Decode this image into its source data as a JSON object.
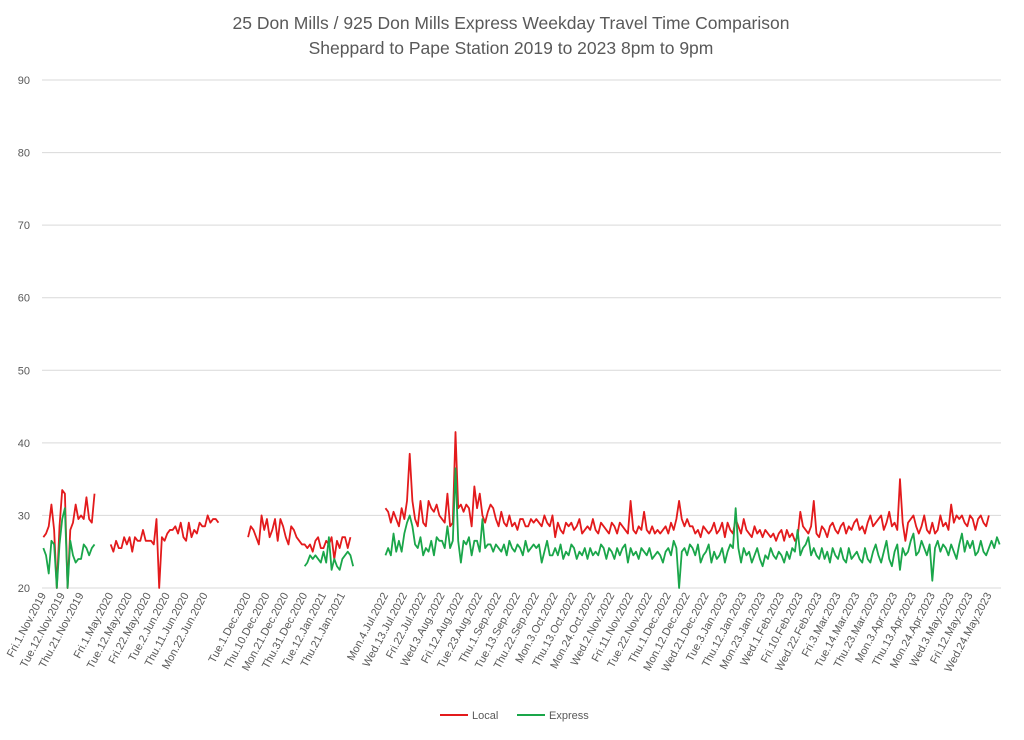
{
  "chart_data": {
    "type": "line",
    "title": "25 Don Mills / 925 Don Mills Express Weekday Travel Time Comparison",
    "subtitle": "Sheppard to Pape Station 2019 to 2023 8pm to 9pm",
    "xlabel": "",
    "ylabel": "",
    "ylim": [
      20,
      90
    ],
    "yticks": [
      20,
      30,
      40,
      50,
      60,
      70,
      80,
      90
    ],
    "grid": true,
    "legend_position": "bottom-center",
    "colors": {
      "Local": "#e31a1c",
      "Express": "#1aa64a"
    },
    "categories": [
      "Fri.1.Nov.2019",
      "Tue.12.Nov.2019",
      "Thu.21.Nov.2019",
      "Fri.1.May.2020",
      "Tue.12.May.2020",
      "Fri.22.May.2020",
      "Tue.2.Jun.2020",
      "Thu.11.Jun.2020",
      "Mon.22.Jun.2020",
      "Tue.1.Dec.2020",
      "Thu.10.Dec.2020",
      "Mon.21.Dec.2020",
      "Thu.31.Dec.2020",
      "Tue.12.Jan.2021",
      "Thu.21.Jan.2021",
      "Mon.4.Jul.2022",
      "Wed.13.Jul.2022",
      "Fri.22.Jul.2022",
      "Wed.3.Aug.2022",
      "Fri.12.Aug.2022",
      "Tue.23.Aug.2022",
      "Thu.1.Sep.2022",
      "Tue.13.Sep.2022",
      "Thu.22.Sep.2022",
      "Mon.3.Oct.2022",
      "Thu.13.Oct.2022",
      "Mon.24.Oct.2022",
      "Wed.2.Nov.2022",
      "Fri.11.Nov.2022",
      "Tue.22.Nov.2022",
      "Thu.1.Dec.2022",
      "Mon.12.Dec.2022",
      "Wed.21.Dec.2022",
      "Tue.3.Jan.2023",
      "Thu.12.Jan.2023",
      "Mon.23.Jan.2023",
      "Wed.1.Feb.2023",
      "Fri.10.Feb.2023",
      "Wed.22.Feb.2023",
      "Fri.3.Mar.2023",
      "Tue.14.Mar.2023",
      "Thu.23.Mar.2023",
      "Mon.3.Apr.2023",
      "Thu.13.Apr.2023",
      "Mon.24.Apr.2023",
      "Wed.3.May.2023",
      "Fri.12.May.2023",
      "Wed.24.May.2023"
    ],
    "category_index": [
      0,
      7,
      14,
      25,
      32,
      39,
      46,
      53,
      60,
      76,
      83,
      90,
      97,
      104,
      111,
      127,
      134,
      141,
      148,
      155,
      162,
      169,
      176,
      183,
      190,
      197,
      204,
      211,
      218,
      225,
      232,
      239,
      246,
      253,
      260,
      267,
      274,
      281,
      288,
      295,
      302,
      309,
      316,
      323,
      330,
      337,
      344,
      351
    ],
    "total_points": 356,
    "series": [
      {
        "name": "Local",
        "segments": [
          {
            "start": 0,
            "values": [
              27.0,
              27.5,
              28.5,
              31.5,
              28.0,
              20.0,
              28.5,
              33.5,
              33.0,
              20.0,
              28.0,
              29.0,
              31.5,
              29.5,
              30.0,
              29.5,
              32.5,
              29.5,
              29.0,
              33.0
            ]
          },
          {
            "start": 25,
            "values": [
              26.0,
              25.0,
              26.5,
              25.5,
              25.5,
              27.0,
              26.0,
              27.0,
              25.0,
              27.0,
              26.5,
              26.5,
              28.0,
              26.5,
              26.5,
              26.5,
              26.0,
              29.5,
              20.0,
              27.0,
              26.5,
              27.5,
              28.0,
              28.0,
              28.5,
              27.5,
              29.0,
              27.0,
              26.5,
              29.0,
              27.0,
              28.0,
              27.5,
              29.0,
              28.5,
              28.5,
              30.0,
              29.0,
              29.5,
              29.5,
              29.0
            ]
          },
          {
            "start": 76,
            "values": [
              27.0,
              28.5,
              28.0,
              27.0,
              26.0,
              30.0,
              28.0,
              29.5,
              27.0,
              28.0,
              29.5,
              26.5,
              29.5,
              28.5,
              27.0,
              26.0,
              28.5,
              28.0,
              27.0,
              26.5,
              26.0,
              26.0,
              25.5,
              26.0,
              25.0,
              26.5,
              27.0,
              25.5,
              25.5,
              26.5,
              26.0,
              27.0,
              24.0,
              26.5,
              25.5,
              27.0,
              27.0,
              25.5,
              27.0
            ]
          },
          {
            "start": 127,
            "values": [
              31.0,
              30.5,
              29.0,
              30.5,
              29.5,
              28.5,
              31.0,
              29.5,
              32.0,
              38.5,
              32.0,
              29.5,
              28.5,
              32.0,
              29.0,
              28.5,
              32.0,
              31.0,
              30.5,
              31.5,
              30.0,
              29.5,
              29.0,
              33.0,
              28.5,
              29.0,
              41.5,
              31.0,
              31.5,
              30.5,
              31.5,
              31.0,
              28.5,
              34.0,
              31.0,
              33.0,
              30.0,
              29.0,
              30.5,
              31.5,
              31.0,
              29.5,
              28.5,
              30.5,
              29.0,
              28.5,
              30.0,
              28.5,
              29.0,
              28.0,
              29.5,
              29.5,
              28.5,
              28.5,
              29.5,
              29.0,
              29.5,
              29.0,
              28.5,
              30.0,
              29.0,
              28.5,
              30.0,
              27.0,
              29.0,
              28.0,
              27.5,
              29.0,
              28.5,
              29.0,
              28.0,
              28.5,
              29.5,
              27.5,
              28.0,
              28.5,
              28.0,
              29.5,
              28.0,
              27.5,
              29.0,
              28.5,
              28.0,
              27.5,
              29.0,
              28.5,
              27.5,
              29.0,
              28.5,
              28.0,
              27.5,
              32.0,
              28.0,
              27.5,
              28.5,
              28.0,
              30.5,
              28.0,
              27.5,
              28.5,
              27.5,
              28.0,
              27.5,
              28.0,
              28.5,
              27.5,
              29.0,
              28.0,
              29.5,
              32.0,
              29.5,
              28.5,
              29.5,
              28.5,
              28.5,
              27.5,
              28.0,
              27.0,
              28.5,
              28.0,
              27.5,
              28.0,
              29.0,
              27.5,
              28.0,
              29.0,
              27.0,
              29.0,
              28.0,
              27.5,
              29.5,
              28.5,
              27.5,
              29.5,
              28.0,
              27.5,
              27.0,
              28.5,
              27.5,
              28.0,
              27.0,
              28.0,
              27.5,
              27.0,
              27.5,
              26.5,
              27.5,
              28.0,
              26.5,
              28.0,
              27.0,
              27.5,
              26.5,
              27.0,
              30.5,
              28.5,
              28.0,
              27.5,
              28.5,
              32.0,
              27.5,
              27.0,
              28.5,
              28.0,
              27.0,
              28.5,
              29.0,
              28.0,
              27.5,
              28.5,
              29.0,
              27.5,
              28.5,
              28.0,
              29.0,
              29.5,
              28.0,
              28.5,
              27.5,
              29.0,
              30.0,
              28.5,
              29.0,
              29.5,
              30.0,
              28.0,
              29.0,
              30.5,
              28.5,
              29.0,
              28.0,
              35.0,
              29.0,
              26.5,
              29.0,
              29.5,
              30.0,
              28.5,
              27.5,
              28.5,
              30.0,
              28.0,
              27.5,
              29.0,
              27.5,
              28.0,
              30.0,
              28.5,
              29.0,
              28.0,
              31.5,
              29.0,
              30.0,
              29.5,
              30.0,
              29.0,
              28.5,
              30.0,
              29.5,
              28.0,
              29.5,
              30.0,
              29.0,
              28.5,
              30.0
            ]
          }
        ]
      },
      {
        "name": "Express",
        "segments": [
          {
            "start": 0,
            "values": [
              25.5,
              24.5,
              22.0,
              26.5,
              26.0,
              20.0,
              26.0,
              29.5,
              31.0,
              20.0,
              26.5,
              24.5,
              23.5,
              24.0,
              24.0,
              26.0,
              25.5,
              24.5,
              25.5,
              26.0
            ]
          },
          {
            "start": 97,
            "values": [
              23.0,
              23.5,
              24.5,
              24.0,
              24.5,
              24.0,
              23.5,
              25.0,
              23.5,
              27.0,
              22.5,
              24.0,
              23.0,
              22.5,
              24.0,
              24.5,
              25.0,
              24.5,
              23.0
            ]
          },
          {
            "start": 127,
            "values": [
              24.5,
              25.5,
              24.5,
              27.5,
              25.0,
              26.5,
              25.0,
              27.5,
              29.0,
              30.0,
              28.5,
              26.0,
              25.5,
              27.0,
              24.5,
              25.5,
              25.0,
              26.5,
              24.5,
              27.0,
              26.5,
              26.5,
              25.5,
              28.5,
              25.5,
              26.5,
              36.5,
              26.5,
              23.5,
              26.5,
              26.0,
              27.0,
              24.5,
              26.5,
              26.5,
              25.0,
              29.5,
              25.5,
              26.0,
              26.0,
              25.0,
              26.0,
              25.5,
              25.0,
              26.0,
              24.5,
              26.5,
              25.5,
              25.0,
              26.0,
              25.5,
              24.5,
              26.5,
              25.0,
              25.5,
              26.0,
              25.5,
              26.0,
              23.5,
              25.0,
              26.5,
              24.5,
              24.5,
              25.5,
              24.5,
              26.0,
              24.0,
              25.0,
              24.5,
              26.0,
              25.5,
              24.0,
              25.0,
              24.5,
              25.5,
              24.0,
              25.5,
              24.5,
              25.0,
              24.5,
              26.0,
              25.5,
              24.0,
              25.5,
              25.0,
              24.0,
              25.5,
              24.5,
              25.5,
              26.0,
              23.5,
              25.5,
              24.5,
              25.0,
              24.0,
              25.5,
              25.0,
              24.5,
              25.5,
              24.0,
              24.5,
              25.0,
              24.5,
              23.5,
              25.0,
              25.5,
              24.5,
              26.5,
              25.5,
              20.0,
              25.0,
              25.5,
              24.5,
              26.0,
              25.5,
              24.5,
              26.0,
              23.5,
              24.5,
              25.0,
              26.0,
              23.5,
              25.0,
              24.0,
              24.5,
              25.5,
              23.5,
              25.0,
              26.0,
              25.5,
              31.0,
              25.5,
              23.5,
              25.5,
              24.5,
              25.0,
              23.5,
              24.5,
              25.5,
              24.0,
              23.0,
              24.5,
              24.0,
              25.5,
              24.5,
              24.0,
              25.0,
              24.5,
              23.5,
              25.0,
              24.0,
              25.5,
              25.0,
              28.0,
              24.5,
              25.5,
              26.0,
              27.0,
              24.5,
              25.5,
              24.5,
              24.0,
              25.5,
              24.0,
              25.0,
              23.5,
              25.5,
              24.5,
              24.0,
              25.5,
              24.0,
              23.5,
              25.5,
              24.0,
              24.5,
              25.0,
              24.0,
              23.5,
              25.5,
              24.0,
              23.5,
              25.0,
              26.0,
              24.5,
              23.5,
              25.0,
              26.5,
              24.0,
              23.0,
              25.0,
              26.0,
              22.5,
              25.5,
              24.5,
              25.0,
              26.5,
              27.5,
              24.5,
              25.0,
              26.5,
              25.5,
              24.5,
              26.0,
              21.0,
              25.5,
              26.5,
              25.0,
              26.0,
              25.5,
              24.5,
              26.0,
              25.0,
              24.0,
              26.0,
              27.5,
              25.0,
              26.5,
              25.5,
              26.5,
              24.5,
              25.0,
              26.5,
              25.0,
              24.5,
              25.5,
              26.5,
              25.5,
              27.0,
              26.0
            ]
          }
        ]
      }
    ]
  }
}
